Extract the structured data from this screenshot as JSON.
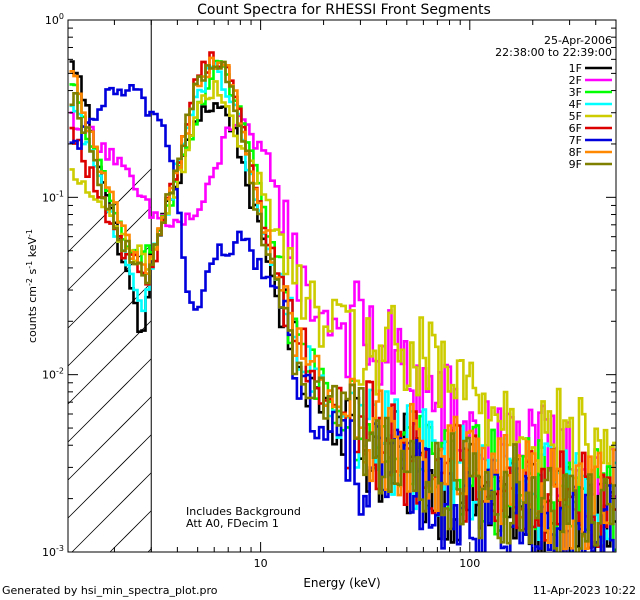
{
  "chart_data": {
    "type": "line",
    "title": "Count Spectra for RHESSI Front Segments",
    "xlabel": "Energy (keV)",
    "ylabel": "counts cm^-2 s^-1 keV^-1",
    "ylabel_parts": [
      "counts cm",
      "-2",
      " s",
      "-1",
      " keV",
      "-1"
    ],
    "xscale": "log",
    "yscale": "log",
    "xlim": [
      1.2,
      500
    ],
    "ylim": [
      0.001,
      1.0
    ],
    "x_ticks": [
      {
        "v": 10,
        "label": "10"
      },
      {
        "v": 100,
        "label": "100"
      }
    ],
    "y_ticks": [
      {
        "v": 1,
        "base": "10",
        "exp": "0"
      },
      {
        "v": 0.1,
        "base": "10",
        "exp": "-1"
      },
      {
        "v": 0.01,
        "base": "10",
        "exp": "-2"
      },
      {
        "v": 0.001,
        "base": "10",
        "exp": "-3"
      }
    ],
    "date": "25-Apr-2006",
    "time_range": "22:38:00 to 22:39:00",
    "attenuator_note": "Att A0, FDecim 1",
    "background_note": "Includes Background",
    "invalid_below_keV": 3,
    "legend_position": "top-right",
    "series": [
      {
        "name": "1F",
        "color": "#000000",
        "points": [
          [
            1.3,
            0.55
          ],
          [
            1.6,
            0.22
          ],
          [
            2.0,
            0.07
          ],
          [
            2.4,
            0.03
          ],
          [
            2.8,
            0.015
          ],
          [
            3.0,
            0.05
          ],
          [
            4.0,
            0.12
          ],
          [
            5.0,
            0.3
          ],
          [
            6.0,
            0.33
          ],
          [
            7.0,
            0.3
          ],
          [
            8.0,
            0.18
          ],
          [
            10,
            0.06
          ],
          [
            12,
            0.03
          ],
          [
            15,
            0.012
          ],
          [
            20,
            0.007
          ],
          [
            30,
            0.004
          ],
          [
            50,
            0.003
          ],
          [
            80,
            0.0022
          ],
          [
            120,
            0.002
          ],
          [
            200,
            0.0017
          ],
          [
            300,
            0.0015
          ],
          [
            500,
            0.0015
          ]
        ]
      },
      {
        "name": "2F",
        "color": "#ff00ff",
        "points": [
          [
            1.3,
            0.28
          ],
          [
            1.6,
            0.22
          ],
          [
            2.0,
            0.17
          ],
          [
            2.4,
            0.12
          ],
          [
            2.8,
            0.09
          ],
          [
            3.0,
            0.08
          ],
          [
            4.0,
            0.07
          ],
          [
            5.0,
            0.08
          ],
          [
            6.0,
            0.13
          ],
          [
            7.0,
            0.25
          ],
          [
            8.0,
            0.3
          ],
          [
            9.0,
            0.2
          ],
          [
            11,
            0.16
          ],
          [
            13,
            0.08
          ],
          [
            16,
            0.03
          ],
          [
            20,
            0.022
          ],
          [
            30,
            0.017
          ],
          [
            50,
            0.01
          ],
          [
            80,
            0.006
          ],
          [
            120,
            0.004
          ],
          [
            200,
            0.0035
          ],
          [
            300,
            0.003
          ],
          [
            500,
            0.0028
          ]
        ]
      },
      {
        "name": "3F",
        "color": "#00ff00",
        "points": [
          [
            1.3,
            0.4
          ],
          [
            1.6,
            0.18
          ],
          [
            2.0,
            0.08
          ],
          [
            2.4,
            0.055
          ],
          [
            2.8,
            0.045
          ],
          [
            3.0,
            0.05
          ],
          [
            4.0,
            0.12
          ],
          [
            5.0,
            0.28
          ],
          [
            6.0,
            0.55
          ],
          [
            7.0,
            0.45
          ],
          [
            8.0,
            0.3
          ],
          [
            10,
            0.1
          ],
          [
            12,
            0.04
          ],
          [
            15,
            0.015
          ],
          [
            20,
            0.009
          ],
          [
            30,
            0.006
          ],
          [
            50,
            0.004
          ],
          [
            80,
            0.003
          ],
          [
            120,
            0.0026
          ],
          [
            200,
            0.0022
          ],
          [
            300,
            0.002
          ],
          [
            500,
            0.0019
          ]
        ]
      },
      {
        "name": "4F",
        "color": "#00ffff",
        "points": [
          [
            1.3,
            0.3
          ],
          [
            1.6,
            0.15
          ],
          [
            2.0,
            0.07
          ],
          [
            2.4,
            0.04
          ],
          [
            2.8,
            0.02
          ],
          [
            3.0,
            0.04
          ],
          [
            4.0,
            0.15
          ],
          [
            5.0,
            0.4
          ],
          [
            6.0,
            0.52
          ],
          [
            7.0,
            0.42
          ],
          [
            8.0,
            0.25
          ],
          [
            10,
            0.07
          ],
          [
            12,
            0.035
          ],
          [
            15,
            0.013
          ],
          [
            20,
            0.007
          ],
          [
            30,
            0.005
          ],
          [
            50,
            0.0035
          ],
          [
            80,
            0.003
          ],
          [
            120,
            0.0025
          ],
          [
            200,
            0.0022
          ],
          [
            300,
            0.002
          ],
          [
            500,
            0.002
          ]
        ]
      },
      {
        "name": "5F",
        "color": "#cccc00",
        "points": [
          [
            1.3,
            0.13
          ],
          [
            1.6,
            0.1
          ],
          [
            2.0,
            0.07
          ],
          [
            2.4,
            0.05
          ],
          [
            2.8,
            0.045
          ],
          [
            3.0,
            0.045
          ],
          [
            4.0,
            0.12
          ],
          [
            5.0,
            0.3
          ],
          [
            6.0,
            0.4
          ],
          [
            7.0,
            0.35
          ],
          [
            8.0,
            0.2
          ],
          [
            10,
            0.12
          ],
          [
            12,
            0.06
          ],
          [
            15,
            0.03
          ],
          [
            20,
            0.02
          ],
          [
            30,
            0.014
          ],
          [
            50,
            0.012
          ],
          [
            80,
            0.009
          ],
          [
            120,
            0.007
          ],
          [
            200,
            0.005
          ],
          [
            300,
            0.004
          ],
          [
            500,
            0.0035
          ]
        ]
      },
      {
        "name": "6F",
        "color": "#dd0000",
        "points": [
          [
            1.3,
            0.22
          ],
          [
            1.6,
            0.12
          ],
          [
            2.0,
            0.06
          ],
          [
            2.4,
            0.045
          ],
          [
            2.8,
            0.035
          ],
          [
            3.0,
            0.04
          ],
          [
            4.0,
            0.15
          ],
          [
            5.0,
            0.5
          ],
          [
            6.0,
            0.62
          ],
          [
            7.0,
            0.55
          ],
          [
            8.0,
            0.3
          ],
          [
            10,
            0.08
          ],
          [
            12,
            0.04
          ],
          [
            15,
            0.015
          ],
          [
            20,
            0.008
          ],
          [
            30,
            0.005
          ],
          [
            50,
            0.0035
          ],
          [
            80,
            0.003
          ],
          [
            120,
            0.0025
          ],
          [
            200,
            0.0022
          ],
          [
            300,
            0.002
          ],
          [
            500,
            0.002
          ]
        ]
      },
      {
        "name": "7F",
        "color": "#0000dd",
        "points": [
          [
            1.3,
            0.18
          ],
          [
            1.6,
            0.3
          ],
          [
            2.0,
            0.4
          ],
          [
            2.4,
            0.38
          ],
          [
            2.8,
            0.35
          ],
          [
            3.0,
            0.3
          ],
          [
            3.5,
            0.25
          ],
          [
            4.0,
            0.1
          ],
          [
            4.5,
            0.03
          ],
          [
            5.0,
            0.02
          ],
          [
            5.5,
            0.035
          ],
          [
            6.0,
            0.05
          ],
          [
            7.0,
            0.045
          ],
          [
            8.0,
            0.06
          ],
          [
            9.0,
            0.05
          ],
          [
            10,
            0.04
          ],
          [
            12,
            0.03
          ],
          [
            15,
            0.01
          ],
          [
            20,
            0.005
          ],
          [
            30,
            0.003
          ],
          [
            50,
            0.0025
          ],
          [
            80,
            0.002
          ],
          [
            120,
            0.0017
          ],
          [
            200,
            0.0015
          ],
          [
            300,
            0.0013
          ],
          [
            500,
            0.0012
          ]
        ]
      },
      {
        "name": "8F",
        "color": "#ff8800",
        "points": [
          [
            1.3,
            0.45
          ],
          [
            1.6,
            0.18
          ],
          [
            2.0,
            0.09
          ],
          [
            2.4,
            0.05
          ],
          [
            2.8,
            0.04
          ],
          [
            3.0,
            0.045
          ],
          [
            4.0,
            0.15
          ],
          [
            5.0,
            0.45
          ],
          [
            6.0,
            0.58
          ],
          [
            7.0,
            0.5
          ],
          [
            8.0,
            0.28
          ],
          [
            10,
            0.08
          ],
          [
            12,
            0.04
          ],
          [
            15,
            0.015
          ],
          [
            20,
            0.008
          ],
          [
            30,
            0.005
          ],
          [
            50,
            0.0035
          ],
          [
            80,
            0.003
          ],
          [
            120,
            0.0026
          ],
          [
            200,
            0.0022
          ],
          [
            300,
            0.002
          ],
          [
            500,
            0.002
          ]
        ]
      },
      {
        "name": "9F",
        "color": "#7f7f00",
        "points": [
          [
            1.3,
            0.38
          ],
          [
            1.6,
            0.16
          ],
          [
            2.0,
            0.075
          ],
          [
            2.4,
            0.045
          ],
          [
            2.8,
            0.035
          ],
          [
            3.0,
            0.04
          ],
          [
            4.0,
            0.15
          ],
          [
            5.0,
            0.45
          ],
          [
            6.0,
            0.58
          ],
          [
            7.0,
            0.5
          ],
          [
            8.0,
            0.25
          ],
          [
            10,
            0.07
          ],
          [
            12,
            0.035
          ],
          [
            15,
            0.013
          ],
          [
            20,
            0.007
          ],
          [
            30,
            0.0045
          ],
          [
            50,
            0.003
          ],
          [
            80,
            0.0025
          ],
          [
            120,
            0.0022
          ],
          [
            200,
            0.002
          ],
          [
            300,
            0.0018
          ],
          [
            500,
            0.0017
          ]
        ]
      }
    ]
  },
  "footer": {
    "left": "Generated by hsi_min_spectra_plot.pro",
    "right": "11-Apr-2023 10:22"
  }
}
